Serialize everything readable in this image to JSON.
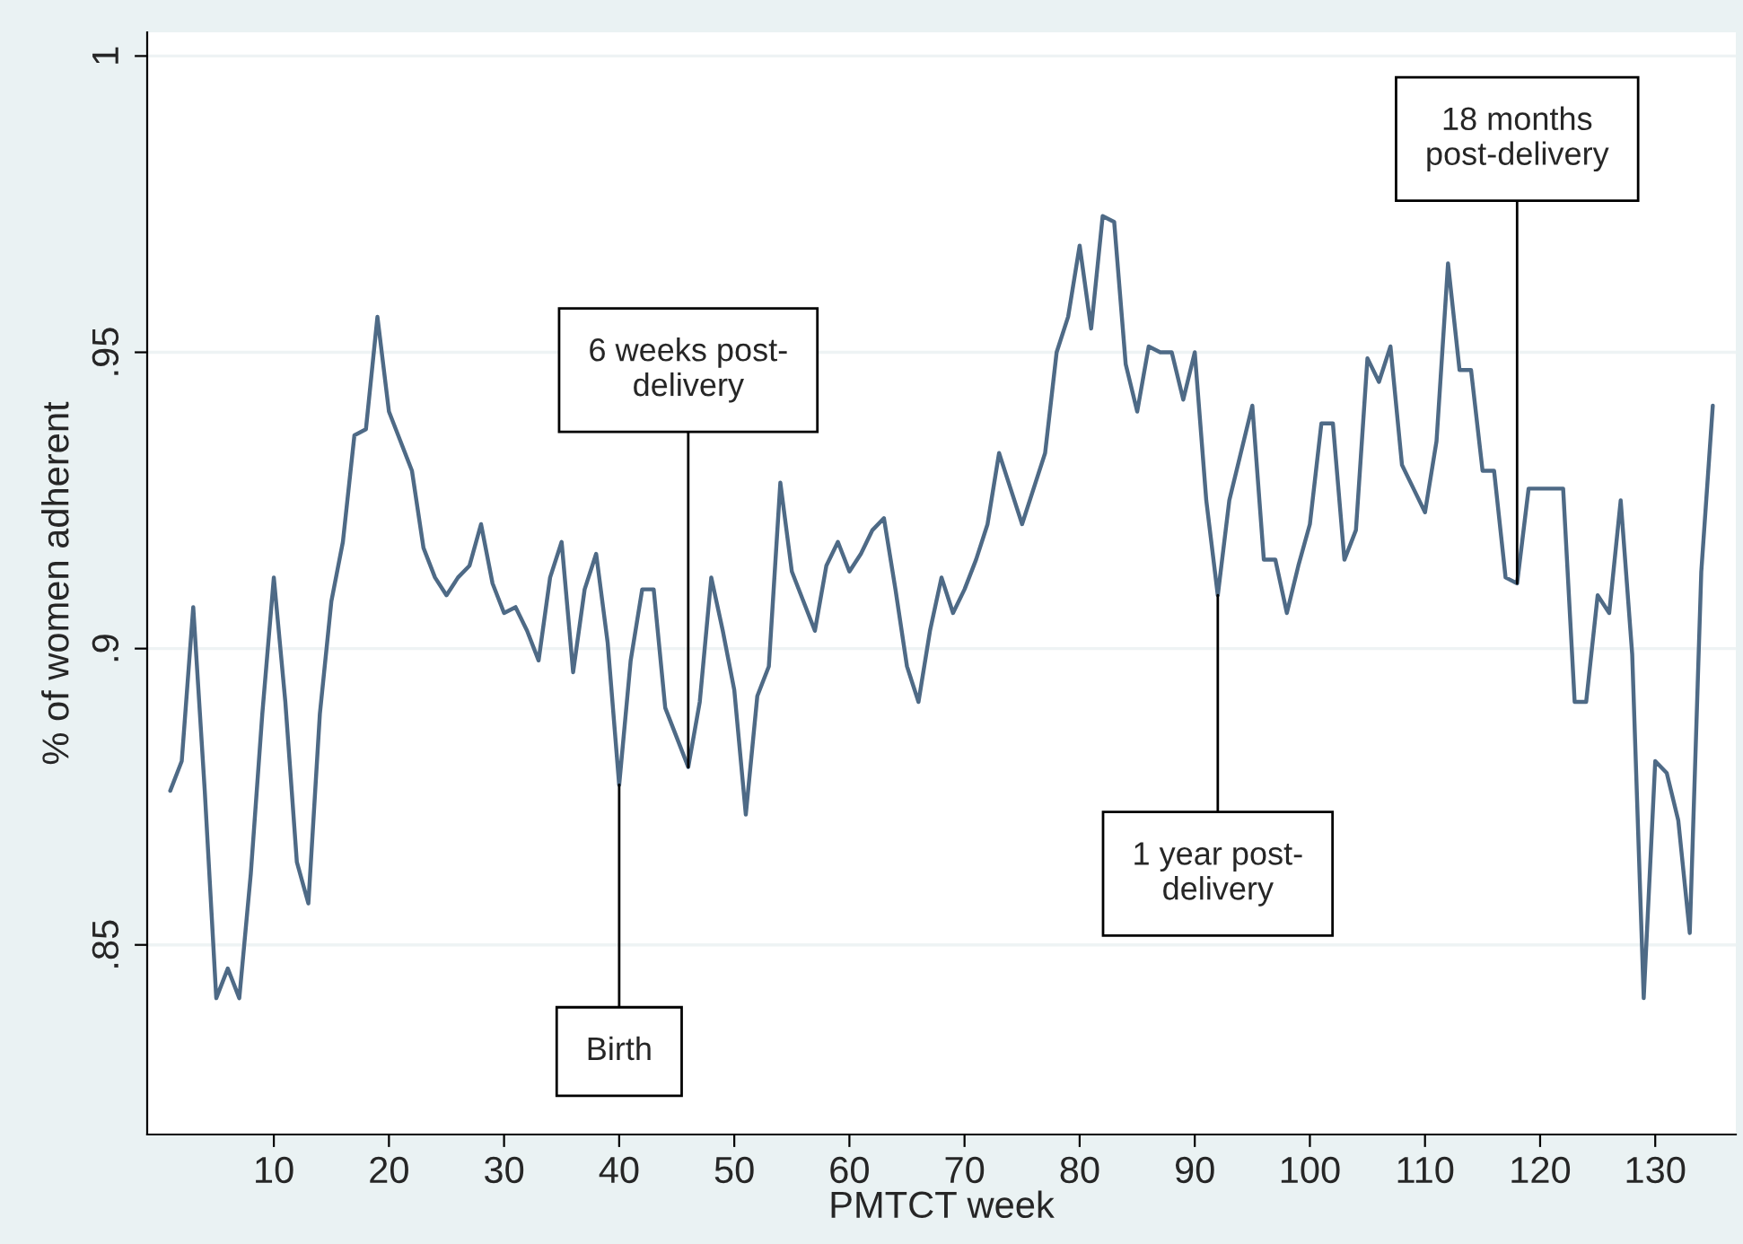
{
  "chart_data": {
    "type": "line",
    "xlabel": "PMTCT week",
    "ylabel": "% of women adherent",
    "x": [
      1,
      2,
      3,
      4,
      5,
      6,
      7,
      8,
      9,
      10,
      11,
      12,
      13,
      14,
      15,
      16,
      17,
      18,
      19,
      20,
      21,
      22,
      23,
      24,
      25,
      26,
      27,
      28,
      29,
      30,
      31,
      32,
      33,
      34,
      35,
      36,
      37,
      38,
      39,
      40,
      41,
      42,
      43,
      44,
      45,
      46,
      47,
      48,
      49,
      50,
      51,
      52,
      53,
      54,
      55,
      56,
      57,
      58,
      59,
      60,
      61,
      62,
      63,
      64,
      65,
      66,
      67,
      68,
      69,
      70,
      71,
      72,
      73,
      74,
      75,
      76,
      77,
      78,
      79,
      80,
      81,
      82,
      83,
      84,
      85,
      86,
      87,
      88,
      89,
      90,
      91,
      92,
      93,
      94,
      95,
      96,
      97,
      98,
      99,
      100,
      101,
      102,
      103,
      104,
      105,
      106,
      107,
      108,
      109,
      110,
      111,
      112,
      113,
      114,
      115,
      116,
      117,
      118,
      119,
      120,
      121,
      122,
      123,
      124,
      125,
      126,
      127,
      128,
      129,
      130,
      131,
      132,
      133,
      134,
      135
    ],
    "series": [
      {
        "color": "#4e6a86",
        "values": [
          0.876,
          0.881,
          0.907,
          0.876,
          0.841,
          0.846,
          0.841,
          0.862,
          0.889,
          0.912,
          0.891,
          0.864,
          0.857,
          0.889,
          0.908,
          0.918,
          0.936,
          0.937,
          0.956,
          0.94,
          0.935,
          0.93,
          0.917,
          0.912,
          0.909,
          0.912,
          0.914,
          0.921,
          0.911,
          0.906,
          0.907,
          0.903,
          0.898,
          0.912,
          0.918,
          0.896,
          0.91,
          0.916,
          0.901,
          0.877,
          0.898,
          0.91,
          0.91,
          0.89,
          0.885,
          0.88,
          0.891,
          0.912,
          0.903,
          0.893,
          0.872,
          0.892,
          0.897,
          0.928,
          0.913,
          0.908,
          0.903,
          0.914,
          0.918,
          0.913,
          0.916,
          0.92,
          0.922,
          0.91,
          0.897,
          0.891,
          0.903,
          0.912,
          0.906,
          0.91,
          0.915,
          0.921,
          0.933,
          0.927,
          0.921,
          0.927,
          0.933,
          0.95,
          0.956,
          0.968,
          0.954,
          0.973,
          0.972,
          0.948,
          0.94,
          0.951,
          0.95,
          0.95,
          0.942,
          0.95,
          0.925,
          0.909,
          0.925,
          0.933,
          0.941,
          0.915,
          0.915,
          0.906,
          0.914,
          0.921,
          0.938,
          0.938,
          0.915,
          0.92,
          0.949,
          0.945,
          0.951,
          0.931,
          0.927,
          0.923,
          0.935,
          0.965,
          0.947,
          0.947,
          0.93,
          0.93,
          0.912,
          0.911,
          0.927,
          0.927,
          0.927,
          0.927,
          0.891,
          0.891,
          0.909,
          0.906,
          0.925,
          0.899,
          0.841,
          0.881,
          0.879,
          0.871,
          0.852,
          0.913,
          0.941
        ]
      }
    ],
    "xlim": [
      -1,
      137
    ],
    "xticks": [
      10,
      20,
      30,
      40,
      50,
      60,
      70,
      80,
      90,
      100,
      110,
      120,
      130
    ],
    "ylim": [
      0.818,
      1.004
    ],
    "yticks": [
      {
        "value": 0.85,
        "label": ".85"
      },
      {
        "value": 0.9,
        "label": ".9"
      },
      {
        "value": 0.95,
        "label": ".95"
      },
      {
        "value": 1,
        "label": "1"
      }
    ],
    "grid": "y",
    "marker": "none",
    "line_style": "solid",
    "annotations": [
      {
        "text": "Birth",
        "x": 40,
        "y": 0.877
      },
      {
        "text": "6 weeks post-\ndelivery",
        "x": 46,
        "y": 0.88
      },
      {
        "text": "1 year post-\ndelivery",
        "x": 92,
        "y": 0.909
      },
      {
        "text": "18 months\npost-delivery",
        "x": 118,
        "y": 0.911
      }
    ]
  }
}
